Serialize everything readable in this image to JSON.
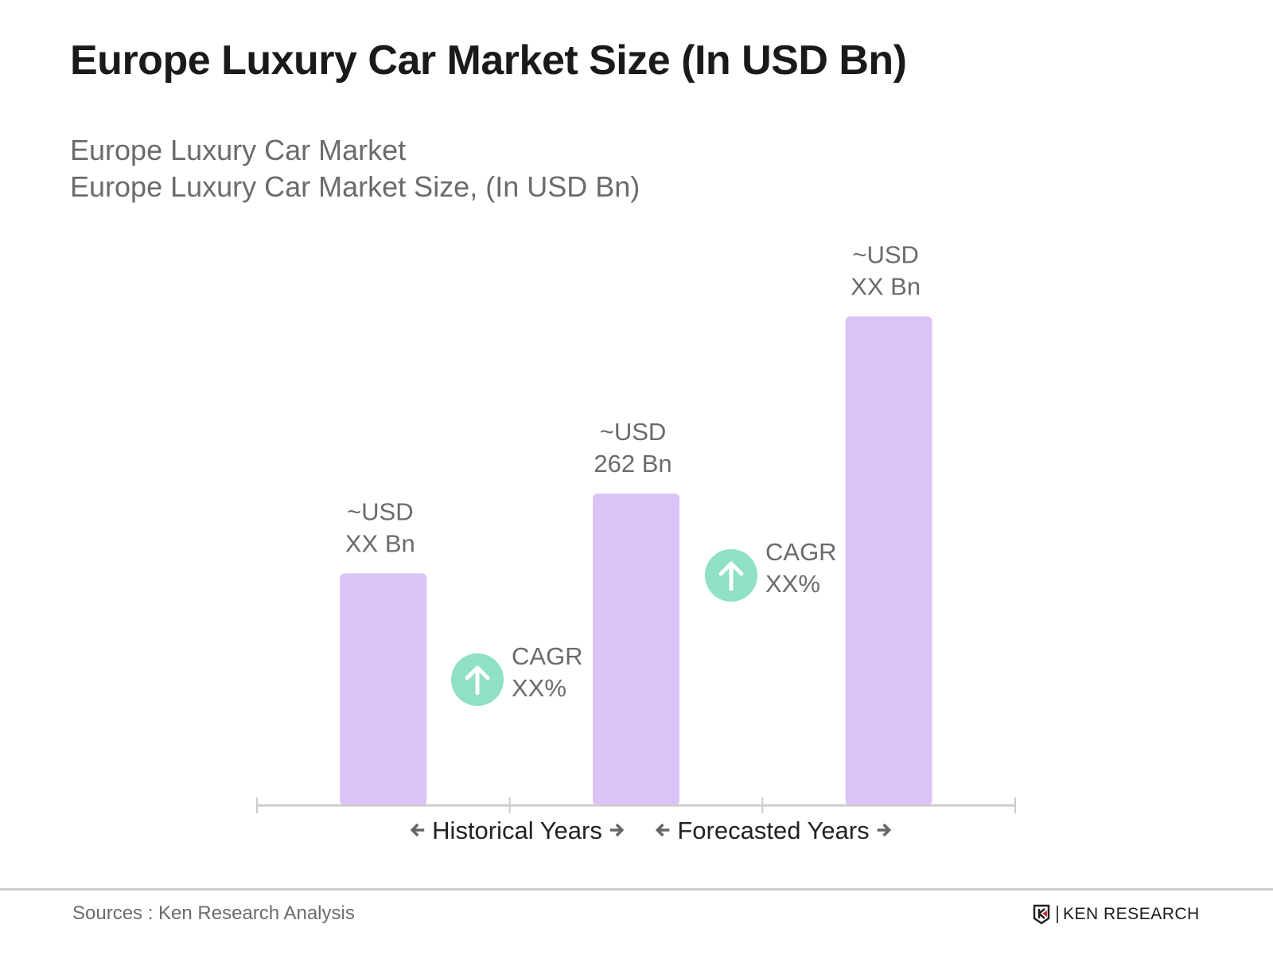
{
  "title": "Europe Luxury Car Market Size (In USD Bn)",
  "subtitle_1": "Europe Luxury Car Market",
  "subtitle_2": "Europe Luxury Car Market Size, (In USD Bn)",
  "chart_data": {
    "type": "bar",
    "categories": [
      "",
      "",
      ""
    ],
    "values": [
      195,
      262,
      411
    ],
    "data_labels": [
      [
        "~USD",
        "XX Bn"
      ],
      [
        "~USD",
        "262 Bn"
      ],
      [
        "~USD",
        "XX Bn"
      ]
    ],
    "bar_color": "#dcc3f7",
    "axis_color": "#cccccc",
    "ylim": [
      0,
      420
    ],
    "grid": false,
    "periods": [
      {
        "label": "Historical Years"
      },
      {
        "label": "Forecasted Years"
      }
    ],
    "cagr": [
      {
        "label": "CAGR",
        "value": "XX%",
        "icon": "arrow-up-circle-icon"
      },
      {
        "label": "CAGR",
        "value": "XX%",
        "icon": "arrow-up-circle-icon"
      }
    ],
    "cagr_color": "#8ee0c6"
  },
  "footer": {
    "source": "Sources : Ken Research Analysis",
    "logo_text": "KEN RESEARCH"
  }
}
